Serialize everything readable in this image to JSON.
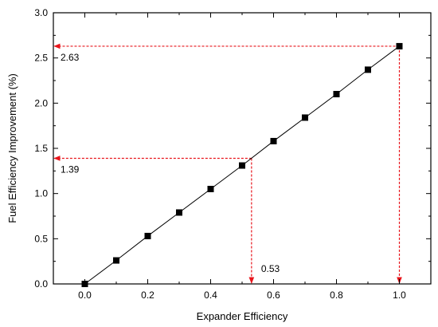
{
  "chart_data": {
    "type": "line",
    "title": "",
    "xlabel": "Expander Efficiency",
    "ylabel": "Fuel Efficiency Improvement (%)",
    "xlim": [
      -0.1,
      1.1
    ],
    "ylim": [
      0.0,
      3.0
    ],
    "xticks": [
      0.0,
      0.2,
      0.4,
      0.6,
      0.8,
      1.0
    ],
    "xtick_labels": [
      "0.0",
      "0.2",
      "0.4",
      "0.6",
      "0.8",
      "1.0"
    ],
    "yticks": [
      0.0,
      0.5,
      1.0,
      1.5,
      2.0,
      2.5,
      3.0
    ],
    "ytick_labels": [
      "0.0",
      "0.5",
      "1.0",
      "1.5",
      "2.0",
      "2.5",
      "3.0"
    ],
    "grid": false,
    "series": [
      {
        "x": [
          0.0,
          0.1,
          0.2,
          0.3,
          0.4,
          0.5,
          0.6,
          0.7,
          0.8,
          0.9,
          1.0
        ],
        "y": [
          0.0,
          0.26,
          0.53,
          0.79,
          1.05,
          1.31,
          1.58,
          1.84,
          2.1,
          2.37,
          2.63
        ],
        "color": "#000000",
        "marker": "square"
      }
    ],
    "annotations": [
      {
        "text": "2.63",
        "x": 1.0,
        "y": 2.63,
        "color": "#e8141b"
      },
      {
        "text": "1.39",
        "x": 0.53,
        "y": 1.39,
        "color": "#e8141b"
      },
      {
        "text": "0.53",
        "x": 0.53,
        "y": 1.39,
        "color": "#e8141b"
      }
    ]
  }
}
